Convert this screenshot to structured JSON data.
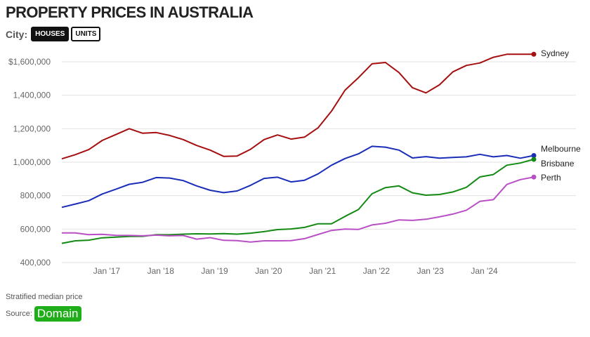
{
  "header": {
    "title": "PROPERTY PRICES IN AUSTRALIA"
  },
  "city_selector": {
    "label": "City:",
    "options": [
      "HOUSES",
      "UNITS"
    ],
    "selected": "HOUSES"
  },
  "footer": {
    "note": "Stratified median price",
    "source_label": "Source:",
    "source_name": "Domain"
  },
  "colors": {
    "Sydney": "#a50f0f",
    "Melbourne": "#1a2db8",
    "Brisbane": "#138a13",
    "Perth": "#b94fc4",
    "grid": "#e2e2e2",
    "logo": "#1fae1a"
  },
  "chart_data": {
    "type": "line",
    "title": "PROPERTY PRICES IN AUSTRALIA",
    "ylim": [
      380000,
      1700000
    ],
    "yticks": [
      400000,
      600000,
      800000,
      1000000,
      1200000,
      1400000,
      1600000
    ],
    "ytick_labels": [
      "400,000",
      "600,000",
      "800,000",
      "1,000,000",
      "1,200,000",
      "1,400,000",
      "$1,600,000"
    ],
    "x_start": "2016-03",
    "x_step_months": 3,
    "xticks": [
      {
        "label": "Jan '17",
        "index": 3.33
      },
      {
        "label": "Jan '18",
        "index": 7.33
      },
      {
        "label": "Jan '19",
        "index": 11.33
      },
      {
        "label": "Jan '20",
        "index": 15.33
      },
      {
        "label": "Jan '21",
        "index": 19.33
      },
      {
        "label": "Jan '22",
        "index": 23.33
      },
      {
        "label": "Jan '23",
        "index": 27.33
      },
      {
        "label": "Jan '24",
        "index": 31.33
      }
    ],
    "grid": true,
    "legend": "end-labels",
    "series": [
      {
        "name": "Sydney",
        "values": [
          1020000,
          1045000,
          1075000,
          1130000,
          1165000,
          1200000,
          1173000,
          1177000,
          1160000,
          1135000,
          1100000,
          1072000,
          1035000,
          1037000,
          1077000,
          1135000,
          1163000,
          1138000,
          1150000,
          1205000,
          1305000,
          1430000,
          1505000,
          1588000,
          1596000,
          1536000,
          1445000,
          1414000,
          1462000,
          1540000,
          1578000,
          1593000,
          1627000,
          1645000,
          1645000,
          1645000
        ]
      },
      {
        "name": "Melbourne",
        "values": [
          730000,
          750000,
          770000,
          810000,
          838000,
          868000,
          880000,
          908000,
          905000,
          890000,
          858000,
          832000,
          818000,
          828000,
          862000,
          903000,
          910000,
          882000,
          892000,
          930000,
          982000,
          1022000,
          1050000,
          1095000,
          1090000,
          1072000,
          1025000,
          1033000,
          1024000,
          1028000,
          1032000,
          1047000,
          1032000,
          1040000,
          1024000,
          1040000
        ]
      },
      {
        "name": "Brisbane",
        "values": [
          515000,
          530000,
          534000,
          548000,
          552000,
          556000,
          557000,
          567000,
          566000,
          570000,
          572000,
          571000,
          573000,
          570000,
          576000,
          585000,
          597000,
          601000,
          610000,
          632000,
          632000,
          676000,
          717000,
          811000,
          848000,
          858000,
          817000,
          803000,
          807000,
          822000,
          850000,
          912000,
          926000,
          982000,
          995000,
          1017000
        ]
      },
      {
        "name": "Perth",
        "values": [
          577000,
          577000,
          567000,
          569000,
          563000,
          562000,
          560000,
          564000,
          560000,
          562000,
          540000,
          549000,
          533000,
          531000,
          523000,
          530000,
          530000,
          531000,
          543000,
          568000,
          592000,
          600000,
          598000,
          625000,
          635000,
          655000,
          652000,
          659000,
          673000,
          690000,
          713000,
          766000,
          776000,
          867000,
          896000,
          911000
        ]
      }
    ]
  }
}
